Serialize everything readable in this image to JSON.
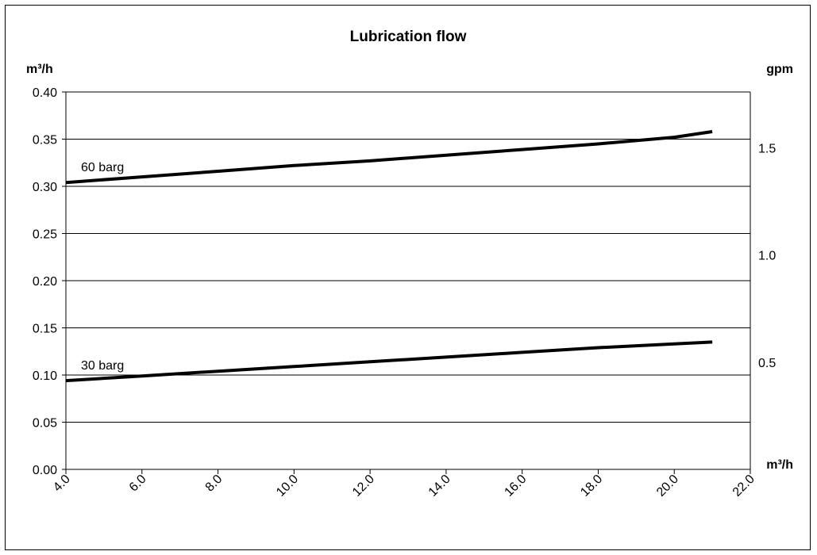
{
  "chart_data": {
    "type": "line",
    "title": "Lubrication flow",
    "ylabel": "m³/h",
    "y2label": "gpm",
    "xlabel": "m³/h",
    "xlim": [
      4.0,
      22.0
    ],
    "ylim": [
      0.0,
      0.4
    ],
    "x_ticks": [
      "4.0",
      "6.0",
      "8.0",
      "10.0",
      "12.0",
      "14.0",
      "16.0",
      "18.0",
      "20.0",
      "22.0"
    ],
    "y_ticks": [
      "0.00",
      "0.05",
      "0.10",
      "0.15",
      "0.20",
      "0.25",
      "0.30",
      "0.35",
      "0.40"
    ],
    "y2_ticks": [
      {
        "label": "0.5",
        "value": 0.5
      },
      {
        "label": "1.0",
        "value": 1.0
      },
      {
        "label": "1.5",
        "value": 1.5
      }
    ],
    "grid": "horizontal",
    "legend": "none",
    "line_color": "#000000",
    "series": [
      {
        "name": "60 barg",
        "x": [
          4.0,
          6.0,
          8.0,
          10.0,
          12.0,
          14.0,
          16.0,
          18.0,
          20.0,
          21.0
        ],
        "y": [
          0.304,
          0.31,
          0.316,
          0.322,
          0.327,
          0.333,
          0.339,
          0.345,
          0.352,
          0.358
        ]
      },
      {
        "name": "30 barg",
        "x": [
          4.0,
          6.0,
          8.0,
          10.0,
          12.0,
          14.0,
          16.0,
          18.0,
          20.0,
          21.0
        ],
        "y": [
          0.094,
          0.099,
          0.104,
          0.109,
          0.114,
          0.119,
          0.124,
          0.129,
          0.133,
          0.135
        ]
      }
    ]
  }
}
